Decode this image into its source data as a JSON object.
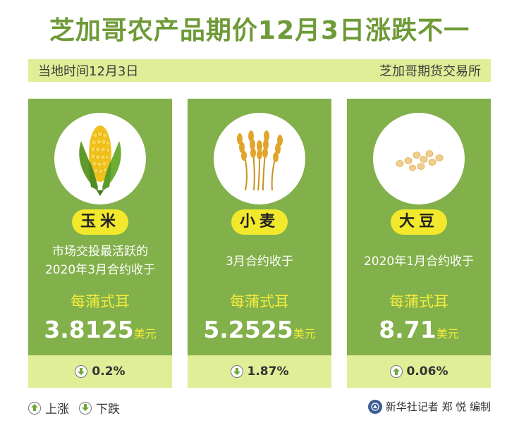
{
  "title": "芝加哥农产品期价12月3日涨跌不一",
  "info": {
    "left": "当地时间12月3日",
    "right": "芝加哥期货交易所"
  },
  "colors": {
    "title_green": "#6e9a37",
    "card_green": "#82b04a",
    "light_band": "#dfee97",
    "yellow": "#f2e92c"
  },
  "cards": [
    {
      "icon": "corn-icon",
      "name": "玉米",
      "desc_line1": "市场交投最活跃的",
      "desc_line2": "2020年3月合约收于",
      "unit": "每蒲式耳",
      "price": "3.8125",
      "currency": "美元",
      "direction": "down",
      "change": "0.2%"
    },
    {
      "icon": "wheat-icon",
      "name": "小麦",
      "desc_line1": "3月合约收于",
      "desc_line2": "",
      "unit": "每蒲式耳",
      "price": "5.2525",
      "currency": "美元",
      "direction": "down",
      "change": "1.87%"
    },
    {
      "icon": "soybean-icon",
      "name": "大豆",
      "desc_line1": "2020年1月合约收于",
      "desc_line2": "",
      "unit": "每蒲式耳",
      "price": "8.71",
      "currency": "美元",
      "direction": "up",
      "change": "0.06%"
    }
  ],
  "legend": {
    "up": "上涨",
    "down": "下跌"
  },
  "credit": "新华社记者 郑 悦 编制"
}
